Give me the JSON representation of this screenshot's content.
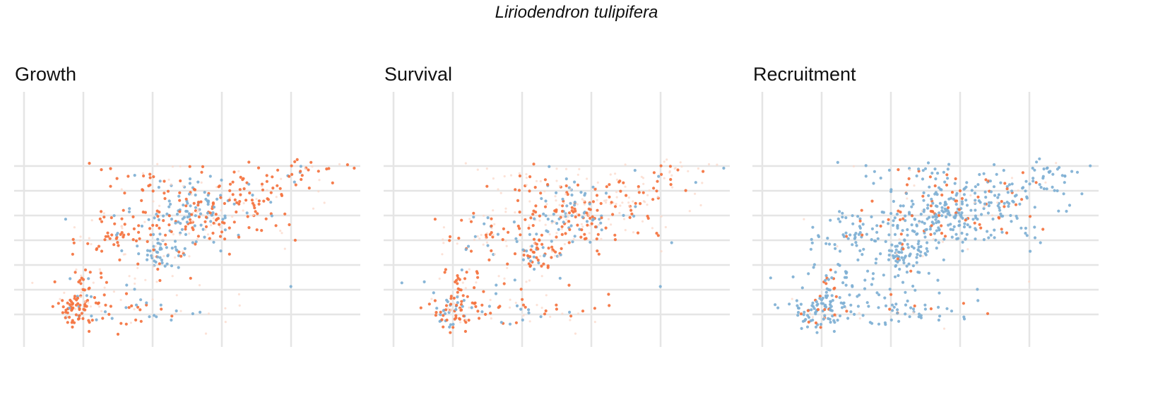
{
  "title": "Liriodendron tulipifera",
  "chart_data": {
    "type": "scatter",
    "xlim": [
      0,
      10
    ],
    "ylim": [
      0,
      10
    ],
    "x_grid": [
      2,
      4,
      6,
      8
    ],
    "y_grid": [
      1,
      2,
      3,
      4,
      5,
      6,
      7
    ],
    "grid": true,
    "colors": {
      "increase": "#f4723e",
      "decrease": "#7fb0d4",
      "neutral": "#fbd6c6"
    },
    "panels": [
      {
        "title": "Growth",
        "clusters": [
          {
            "x": 1.6,
            "y": 1.1,
            "sx": 0.2,
            "sy": 0.25,
            "n": 40,
            "mix": [
              0.75,
              0.12,
              0.13
            ]
          },
          {
            "x": 2.2,
            "y": 1.8,
            "sx": 0.3,
            "sy": 0.6,
            "n": 55,
            "mix": [
              0.78,
              0.1,
              0.12
            ]
          },
          {
            "x": 2.9,
            "y": 4.3,
            "sx": 0.6,
            "sy": 0.5,
            "n": 55,
            "mix": [
              0.72,
              0.12,
              0.16
            ]
          },
          {
            "x": 4.3,
            "y": 3.5,
            "sx": 0.4,
            "sy": 0.3,
            "n": 50,
            "mix": [
              0.15,
              0.75,
              0.1
            ]
          },
          {
            "x": 5.0,
            "y": 5.0,
            "sx": 0.7,
            "sy": 0.6,
            "n": 160,
            "mix": [
              0.3,
              0.6,
              0.1
            ]
          },
          {
            "x": 6.8,
            "y": 5.7,
            "sx": 1.0,
            "sy": 0.8,
            "n": 110,
            "mix": [
              0.7,
              0.1,
              0.2
            ]
          },
          {
            "x": 8.6,
            "y": 6.8,
            "sx": 0.5,
            "sy": 0.2,
            "n": 22,
            "mix": [
              0.8,
              0.05,
              0.15
            ]
          },
          {
            "x": 3.5,
            "y": 1.2,
            "sx": 0.6,
            "sy": 0.4,
            "n": 25,
            "mix": [
              0.4,
              0.45,
              0.15
            ]
          },
          {
            "x": 3.7,
            "y": 6.2,
            "sx": 0.6,
            "sy": 0.5,
            "n": 30,
            "mix": [
              0.75,
              0.1,
              0.15
            ]
          },
          {
            "x": 4.0,
            "y": 2.0,
            "sx": 1.5,
            "sy": 1.0,
            "n": 60,
            "mix": [
              0.3,
              0.2,
              0.5
            ]
          }
        ],
        "extra": [
          [
            0.15,
            3.05,
            "increase"
          ],
          [
            3.7,
            6.05,
            "increase"
          ],
          [
            4.8,
            6.4,
            "increase"
          ],
          [
            3.0,
            0.2,
            "increase"
          ]
        ]
      },
      {
        "title": "Survival",
        "clusters": [
          {
            "x": 1.8,
            "y": 1.0,
            "sx": 0.3,
            "sy": 0.3,
            "n": 45,
            "mix": [
              0.45,
              0.3,
              0.25
            ]
          },
          {
            "x": 2.4,
            "y": 1.8,
            "sx": 0.3,
            "sy": 0.6,
            "n": 50,
            "mix": [
              0.6,
              0.25,
              0.15
            ]
          },
          {
            "x": 2.9,
            "y": 4.3,
            "sx": 0.6,
            "sy": 0.5,
            "n": 50,
            "mix": [
              0.3,
              0.4,
              0.3
            ]
          },
          {
            "x": 4.5,
            "y": 3.5,
            "sx": 0.4,
            "sy": 0.3,
            "n": 50,
            "mix": [
              0.55,
              0.3,
              0.15
            ]
          },
          {
            "x": 5.2,
            "y": 5.0,
            "sx": 0.7,
            "sy": 0.6,
            "n": 160,
            "mix": [
              0.45,
              0.3,
              0.25
            ]
          },
          {
            "x": 7.0,
            "y": 5.6,
            "sx": 1.0,
            "sy": 0.8,
            "n": 110,
            "mix": [
              0.35,
              0.1,
              0.55
            ]
          },
          {
            "x": 8.6,
            "y": 6.8,
            "sx": 0.5,
            "sy": 0.2,
            "n": 22,
            "mix": [
              0.3,
              0.05,
              0.65
            ]
          },
          {
            "x": 4.0,
            "y": 1.2,
            "sx": 0.8,
            "sy": 0.4,
            "n": 30,
            "mix": [
              0.35,
              0.45,
              0.2
            ]
          },
          {
            "x": 3.9,
            "y": 6.2,
            "sx": 0.6,
            "sy": 0.5,
            "n": 30,
            "mix": [
              0.3,
              0.15,
              0.55
            ]
          },
          {
            "x": 4.0,
            "y": 2.0,
            "sx": 1.5,
            "sy": 1.0,
            "n": 60,
            "mix": [
              0.2,
              0.2,
              0.6
            ]
          }
        ],
        "extra": [
          [
            0.2,
            3.05,
            "neutral"
          ],
          [
            3.8,
            6.05,
            "increase"
          ],
          [
            5.0,
            6.4,
            "neutral"
          ]
        ]
      },
      {
        "title": "Recruitment",
        "clusters": [
          {
            "x": 1.7,
            "y": 1.0,
            "sx": 0.4,
            "sy": 0.3,
            "n": 60,
            "mix": [
              0.08,
              0.85,
              0.07
            ]
          },
          {
            "x": 2.4,
            "y": 1.8,
            "sx": 0.3,
            "sy": 0.6,
            "n": 55,
            "mix": [
              0.15,
              0.8,
              0.05
            ]
          },
          {
            "x": 2.9,
            "y": 4.3,
            "sx": 0.6,
            "sy": 0.5,
            "n": 55,
            "mix": [
              0.15,
              0.8,
              0.05
            ]
          },
          {
            "x": 4.4,
            "y": 3.5,
            "sx": 0.4,
            "sy": 0.3,
            "n": 60,
            "mix": [
              0.05,
              0.9,
              0.05
            ]
          },
          {
            "x": 5.2,
            "y": 5.0,
            "sx": 0.8,
            "sy": 0.6,
            "n": 200,
            "mix": [
              0.12,
              0.83,
              0.05
            ]
          },
          {
            "x": 7.0,
            "y": 5.6,
            "sx": 1.0,
            "sy": 0.8,
            "n": 140,
            "mix": [
              0.15,
              0.8,
              0.05
            ]
          },
          {
            "x": 8.8,
            "y": 6.6,
            "sx": 0.6,
            "sy": 0.3,
            "n": 30,
            "mix": [
              0.05,
              0.9,
              0.05
            ]
          },
          {
            "x": 4.0,
            "y": 1.2,
            "sx": 0.8,
            "sy": 0.4,
            "n": 40,
            "mix": [
              0.1,
              0.85,
              0.05
            ]
          },
          {
            "x": 4.5,
            "y": 6.6,
            "sx": 0.8,
            "sy": 0.3,
            "n": 25,
            "mix": [
              0.15,
              0.8,
              0.05
            ]
          },
          {
            "x": 4.0,
            "y": 2.2,
            "sx": 1.5,
            "sy": 1.0,
            "n": 80,
            "mix": [
              0.12,
              0.8,
              0.08
            ]
          }
        ],
        "extra": [
          [
            0.2,
            3.05,
            "increase"
          ],
          [
            6.0,
            6.0,
            "increase"
          ],
          [
            3.5,
            6.3,
            "decrease"
          ]
        ]
      }
    ]
  }
}
